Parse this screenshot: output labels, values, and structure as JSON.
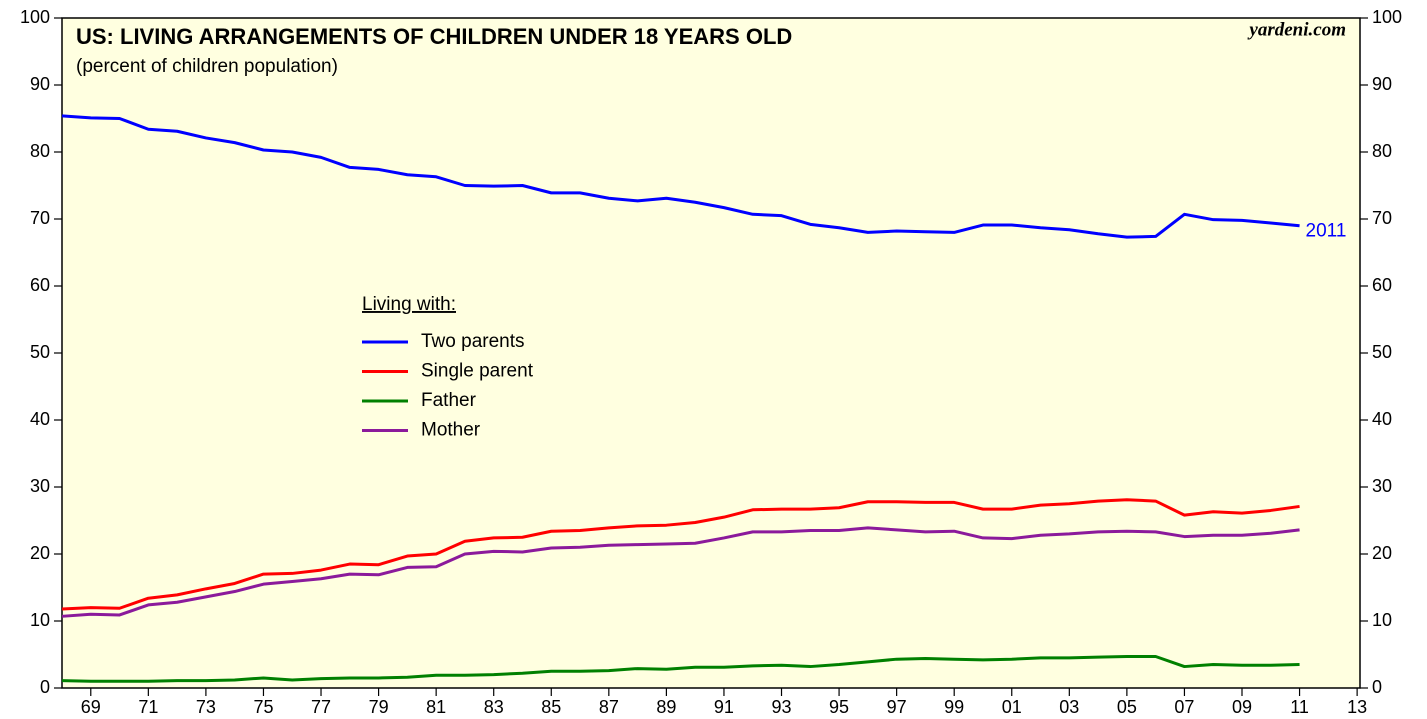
{
  "chart_data": {
    "type": "line",
    "title": "US: LIVING ARRANGEMENTS OF CHILDREN UNDER 18 YEARS OLD",
    "subtitle": "(percent of children population)",
    "source": "yardeni.com",
    "legend_title": "Living with:",
    "end_label": "2011",
    "x": [
      1968,
      1969,
      1970,
      1971,
      1972,
      1973,
      1974,
      1975,
      1976,
      1977,
      1978,
      1979,
      1980,
      1981,
      1982,
      1983,
      1984,
      1985,
      1986,
      1987,
      1988,
      1989,
      1990,
      1991,
      1992,
      1993,
      1994,
      1995,
      1996,
      1997,
      1998,
      1999,
      2000,
      2001,
      2002,
      2003,
      2004,
      2005,
      2006,
      2007,
      2008,
      2009,
      2010,
      2011
    ],
    "series": [
      {
        "name": "Two parents",
        "color": "#0000ff",
        "values": [
          85.4,
          85.1,
          85.0,
          83.4,
          83.1,
          82.1,
          81.4,
          80.3,
          80.0,
          79.2,
          77.7,
          77.4,
          76.6,
          76.3,
          75.0,
          74.9,
          75.0,
          73.9,
          73.9,
          73.1,
          72.7,
          73.1,
          72.5,
          71.7,
          70.7,
          70.5,
          69.2,
          68.7,
          68.0,
          68.2,
          68.1,
          68.0,
          69.1,
          69.1,
          68.7,
          68.4,
          67.8,
          67.3,
          67.4,
          70.7,
          69.9,
          69.8,
          69.4,
          69.0
        ]
      },
      {
        "name": "Single parent",
        "color": "#ff0000",
        "values": [
          11.8,
          12.0,
          11.9,
          13.4,
          13.9,
          14.8,
          15.6,
          17.0,
          17.1,
          17.6,
          18.5,
          18.4,
          19.7,
          20.0,
          21.9,
          22.4,
          22.5,
          23.4,
          23.5,
          23.9,
          24.2,
          24.3,
          24.7,
          25.5,
          26.6,
          26.7,
          26.7,
          26.9,
          27.8,
          27.8,
          27.7,
          27.7,
          26.7,
          26.7,
          27.3,
          27.5,
          27.9,
          28.1,
          27.9,
          25.8,
          26.3,
          26.1,
          26.5,
          27.1
        ]
      },
      {
        "name": "Father",
        "color": "#008000",
        "values": [
          1.1,
          1.0,
          1.0,
          1.0,
          1.1,
          1.1,
          1.2,
          1.5,
          1.2,
          1.4,
          1.5,
          1.5,
          1.6,
          1.9,
          1.9,
          2.0,
          2.2,
          2.5,
          2.5,
          2.6,
          2.9,
          2.8,
          3.1,
          3.1,
          3.3,
          3.4,
          3.2,
          3.5,
          3.9,
          4.3,
          4.4,
          4.3,
          4.2,
          4.3,
          4.5,
          4.5,
          4.6,
          4.7,
          4.7,
          3.2,
          3.5,
          3.4,
          3.4,
          3.5
        ]
      },
      {
        "name": "Mother",
        "color": "#8b1a9b",
        "values": [
          10.7,
          11.0,
          10.9,
          12.4,
          12.8,
          13.6,
          14.4,
          15.5,
          15.9,
          16.3,
          17.0,
          16.9,
          18.0,
          18.1,
          20.0,
          20.4,
          20.3,
          20.9,
          21.0,
          21.3,
          21.4,
          21.5,
          21.6,
          22.4,
          23.3,
          23.3,
          23.5,
          23.5,
          23.9,
          23.6,
          23.3,
          23.4,
          22.4,
          22.3,
          22.8,
          23.0,
          23.3,
          23.4,
          23.3,
          22.6,
          22.8,
          22.8,
          23.1,
          23.6
        ]
      }
    ],
    "xlim": [
      1968,
      2013.1
    ],
    "xticks": [
      {
        "value": 1969,
        "label": "69"
      },
      {
        "value": 1971,
        "label": "71"
      },
      {
        "value": 1973,
        "label": "73"
      },
      {
        "value": 1975,
        "label": "75"
      },
      {
        "value": 1977,
        "label": "77"
      },
      {
        "value": 1979,
        "label": "79"
      },
      {
        "value": 1981,
        "label": "81"
      },
      {
        "value": 1983,
        "label": "83"
      },
      {
        "value": 1985,
        "label": "85"
      },
      {
        "value": 1987,
        "label": "87"
      },
      {
        "value": 1989,
        "label": "89"
      },
      {
        "value": 1991,
        "label": "91"
      },
      {
        "value": 1993,
        "label": "93"
      },
      {
        "value": 1995,
        "label": "95"
      },
      {
        "value": 1997,
        "label": "97"
      },
      {
        "value": 1999,
        "label": "99"
      },
      {
        "value": 2001,
        "label": "01"
      },
      {
        "value": 2003,
        "label": "03"
      },
      {
        "value": 2005,
        "label": "05"
      },
      {
        "value": 2007,
        "label": "07"
      },
      {
        "value": 2009,
        "label": "09"
      },
      {
        "value": 2011,
        "label": "11"
      },
      {
        "value": 2013,
        "label": "13"
      }
    ],
    "ylim": [
      0,
      100
    ],
    "yticks": [
      0,
      10,
      20,
      30,
      40,
      50,
      60,
      70,
      80,
      90,
      100
    ],
    "background": "#ffffe0"
  }
}
